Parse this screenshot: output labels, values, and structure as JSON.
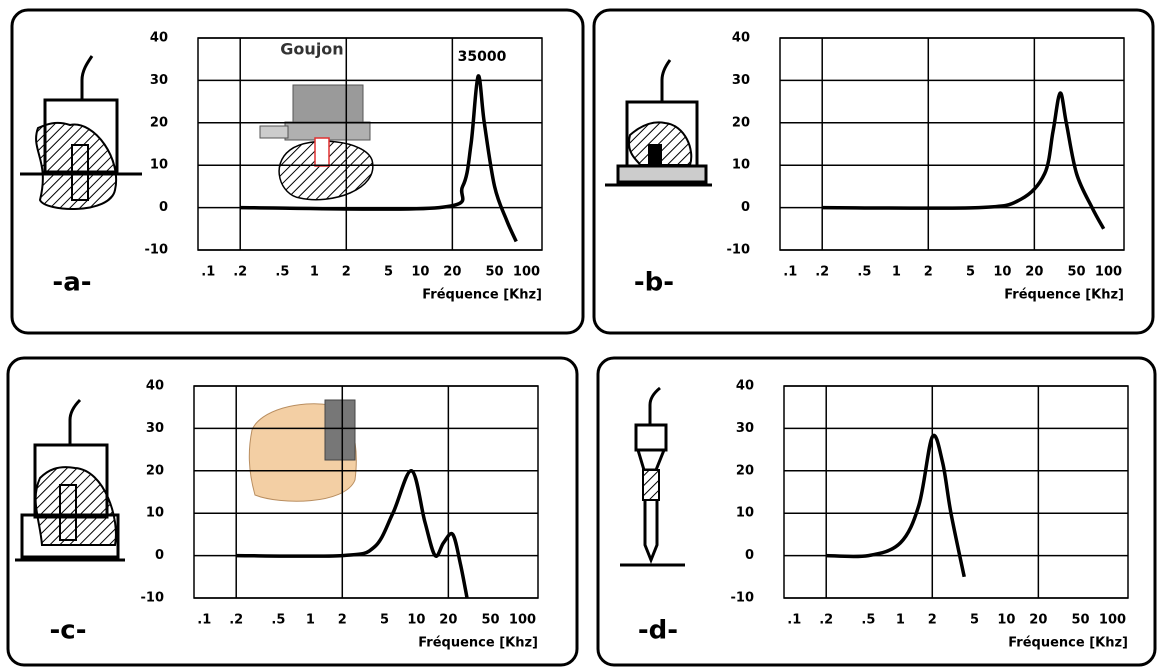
{
  "chart_data": [
    {
      "type": "line",
      "label": "-a-",
      "xlabel": "Fréquence [Khz]",
      "annotations": [
        "Goujon",
        "35000"
      ],
      "log_x": true,
      "xlim": [
        0.08,
        140
      ],
      "ylim": [
        -10,
        40
      ],
      "xticks": [
        {
          "value": 0.1,
          "label": ".1"
        },
        {
          "value": 0.2,
          "label": ".2"
        },
        {
          "value": 0.5,
          "label": ".5"
        },
        1,
        2,
        5,
        10,
        20,
        50,
        100
      ],
      "yticks": [
        -10,
        0,
        10,
        20,
        30,
        40
      ],
      "xgrid": [
        0.2,
        2,
        20
      ],
      "grid": true,
      "color": "#000000",
      "x": [
        0.2,
        15,
        25,
        30,
        35,
        40,
        50,
        65,
        80
      ],
      "values": [
        0,
        0,
        5,
        15,
        31,
        20,
        5,
        -3,
        -8
      ]
    },
    {
      "type": "line",
      "label": "-b-",
      "xlabel": "Fréquence [Khz]",
      "log_x": true,
      "xlim": [
        0.08,
        140
      ],
      "ylim": [
        -10,
        40
      ],
      "xticks": [
        {
          "value": 0.1,
          "label": ".1"
        },
        {
          "value": 0.2,
          "label": ".2"
        },
        {
          "value": 0.5,
          "label": ".5"
        },
        1,
        2,
        5,
        10,
        20,
        50,
        100
      ],
      "yticks": [
        -10,
        0,
        10,
        20,
        30,
        40
      ],
      "xgrid": [
        0.2,
        2,
        20
      ],
      "grid": true,
      "color": "#000000",
      "x": [
        0.2,
        6,
        15,
        25,
        30,
        35,
        40,
        50,
        70,
        90
      ],
      "values": [
        0,
        0,
        2,
        8,
        18,
        27,
        20,
        8,
        0,
        -5
      ]
    },
    {
      "type": "line",
      "label": "-c-",
      "xlabel": "Fréquence [Khz]",
      "log_x": true,
      "xlim": [
        0.08,
        140
      ],
      "ylim": [
        -10,
        40
      ],
      "xticks": [
        {
          "value": 0.1,
          "label": ".1"
        },
        {
          "value": 0.2,
          "label": ".2"
        },
        {
          "value": 0.5,
          "label": ".5"
        },
        1,
        2,
        5,
        10,
        20,
        50,
        100
      ],
      "yticks": [
        -10,
        0,
        10,
        20,
        30,
        40
      ],
      "xgrid": [
        0.2,
        2,
        20
      ],
      "grid": true,
      "color": "#000000",
      "x": [
        0.2,
        2,
        4,
        6,
        9,
        12,
        15,
        18,
        22,
        26,
        30
      ],
      "values": [
        0,
        0,
        2,
        10,
        20,
        8,
        0,
        3,
        5,
        -2,
        -10
      ]
    },
    {
      "type": "line",
      "label": "-d-",
      "xlabel": "Fréquence [Khz]",
      "log_x": true,
      "xlim": [
        0.08,
        140
      ],
      "ylim": [
        -10,
        40
      ],
      "xticks": [
        {
          "value": 0.1,
          "label": ".1"
        },
        {
          "value": 0.2,
          "label": ".2"
        },
        {
          "value": 0.5,
          "label": ".5"
        },
        1,
        2,
        5,
        10,
        20,
        50,
        100
      ],
      "yticks": [
        -10,
        0,
        10,
        20,
        30,
        40
      ],
      "xgrid": [
        0.2,
        2,
        20
      ],
      "grid": true,
      "color": "#000000",
      "x": [
        0.2,
        0.5,
        1,
        1.5,
        2,
        2.5,
        3,
        4
      ],
      "values": [
        0,
        0,
        3,
        12,
        28,
        22,
        10,
        -5
      ]
    }
  ]
}
